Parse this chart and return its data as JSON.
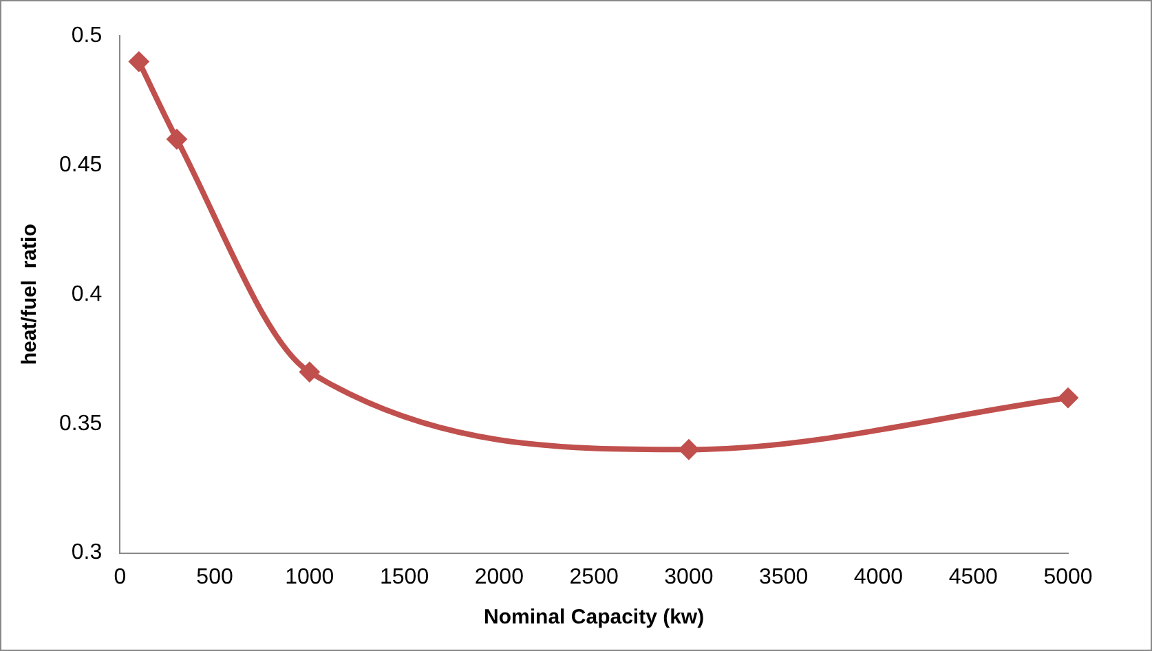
{
  "chart_data": {
    "type": "line",
    "xlabel": "Nominal Capacity (kw)",
    "ylabel": "heat/fuel  ratio",
    "x": [
      100,
      300,
      1000,
      3000,
      5000
    ],
    "series": [
      {
        "color": "#c0504d",
        "values": [
          0.49,
          0.46,
          0.37,
          0.34,
          0.36
        ]
      }
    ],
    "xlim": [
      0,
      5000
    ],
    "xticks": [
      0,
      500,
      1000,
      1500,
      2000,
      2500,
      3000,
      3500,
      4000,
      4500,
      5000
    ],
    "ylim": [
      0.3,
      0.5
    ],
    "yticks": [
      0.3,
      0.35,
      0.4,
      0.45,
      0.5
    ],
    "grid": false,
    "legend": false,
    "marker": "diamond",
    "line_style": "solid"
  }
}
